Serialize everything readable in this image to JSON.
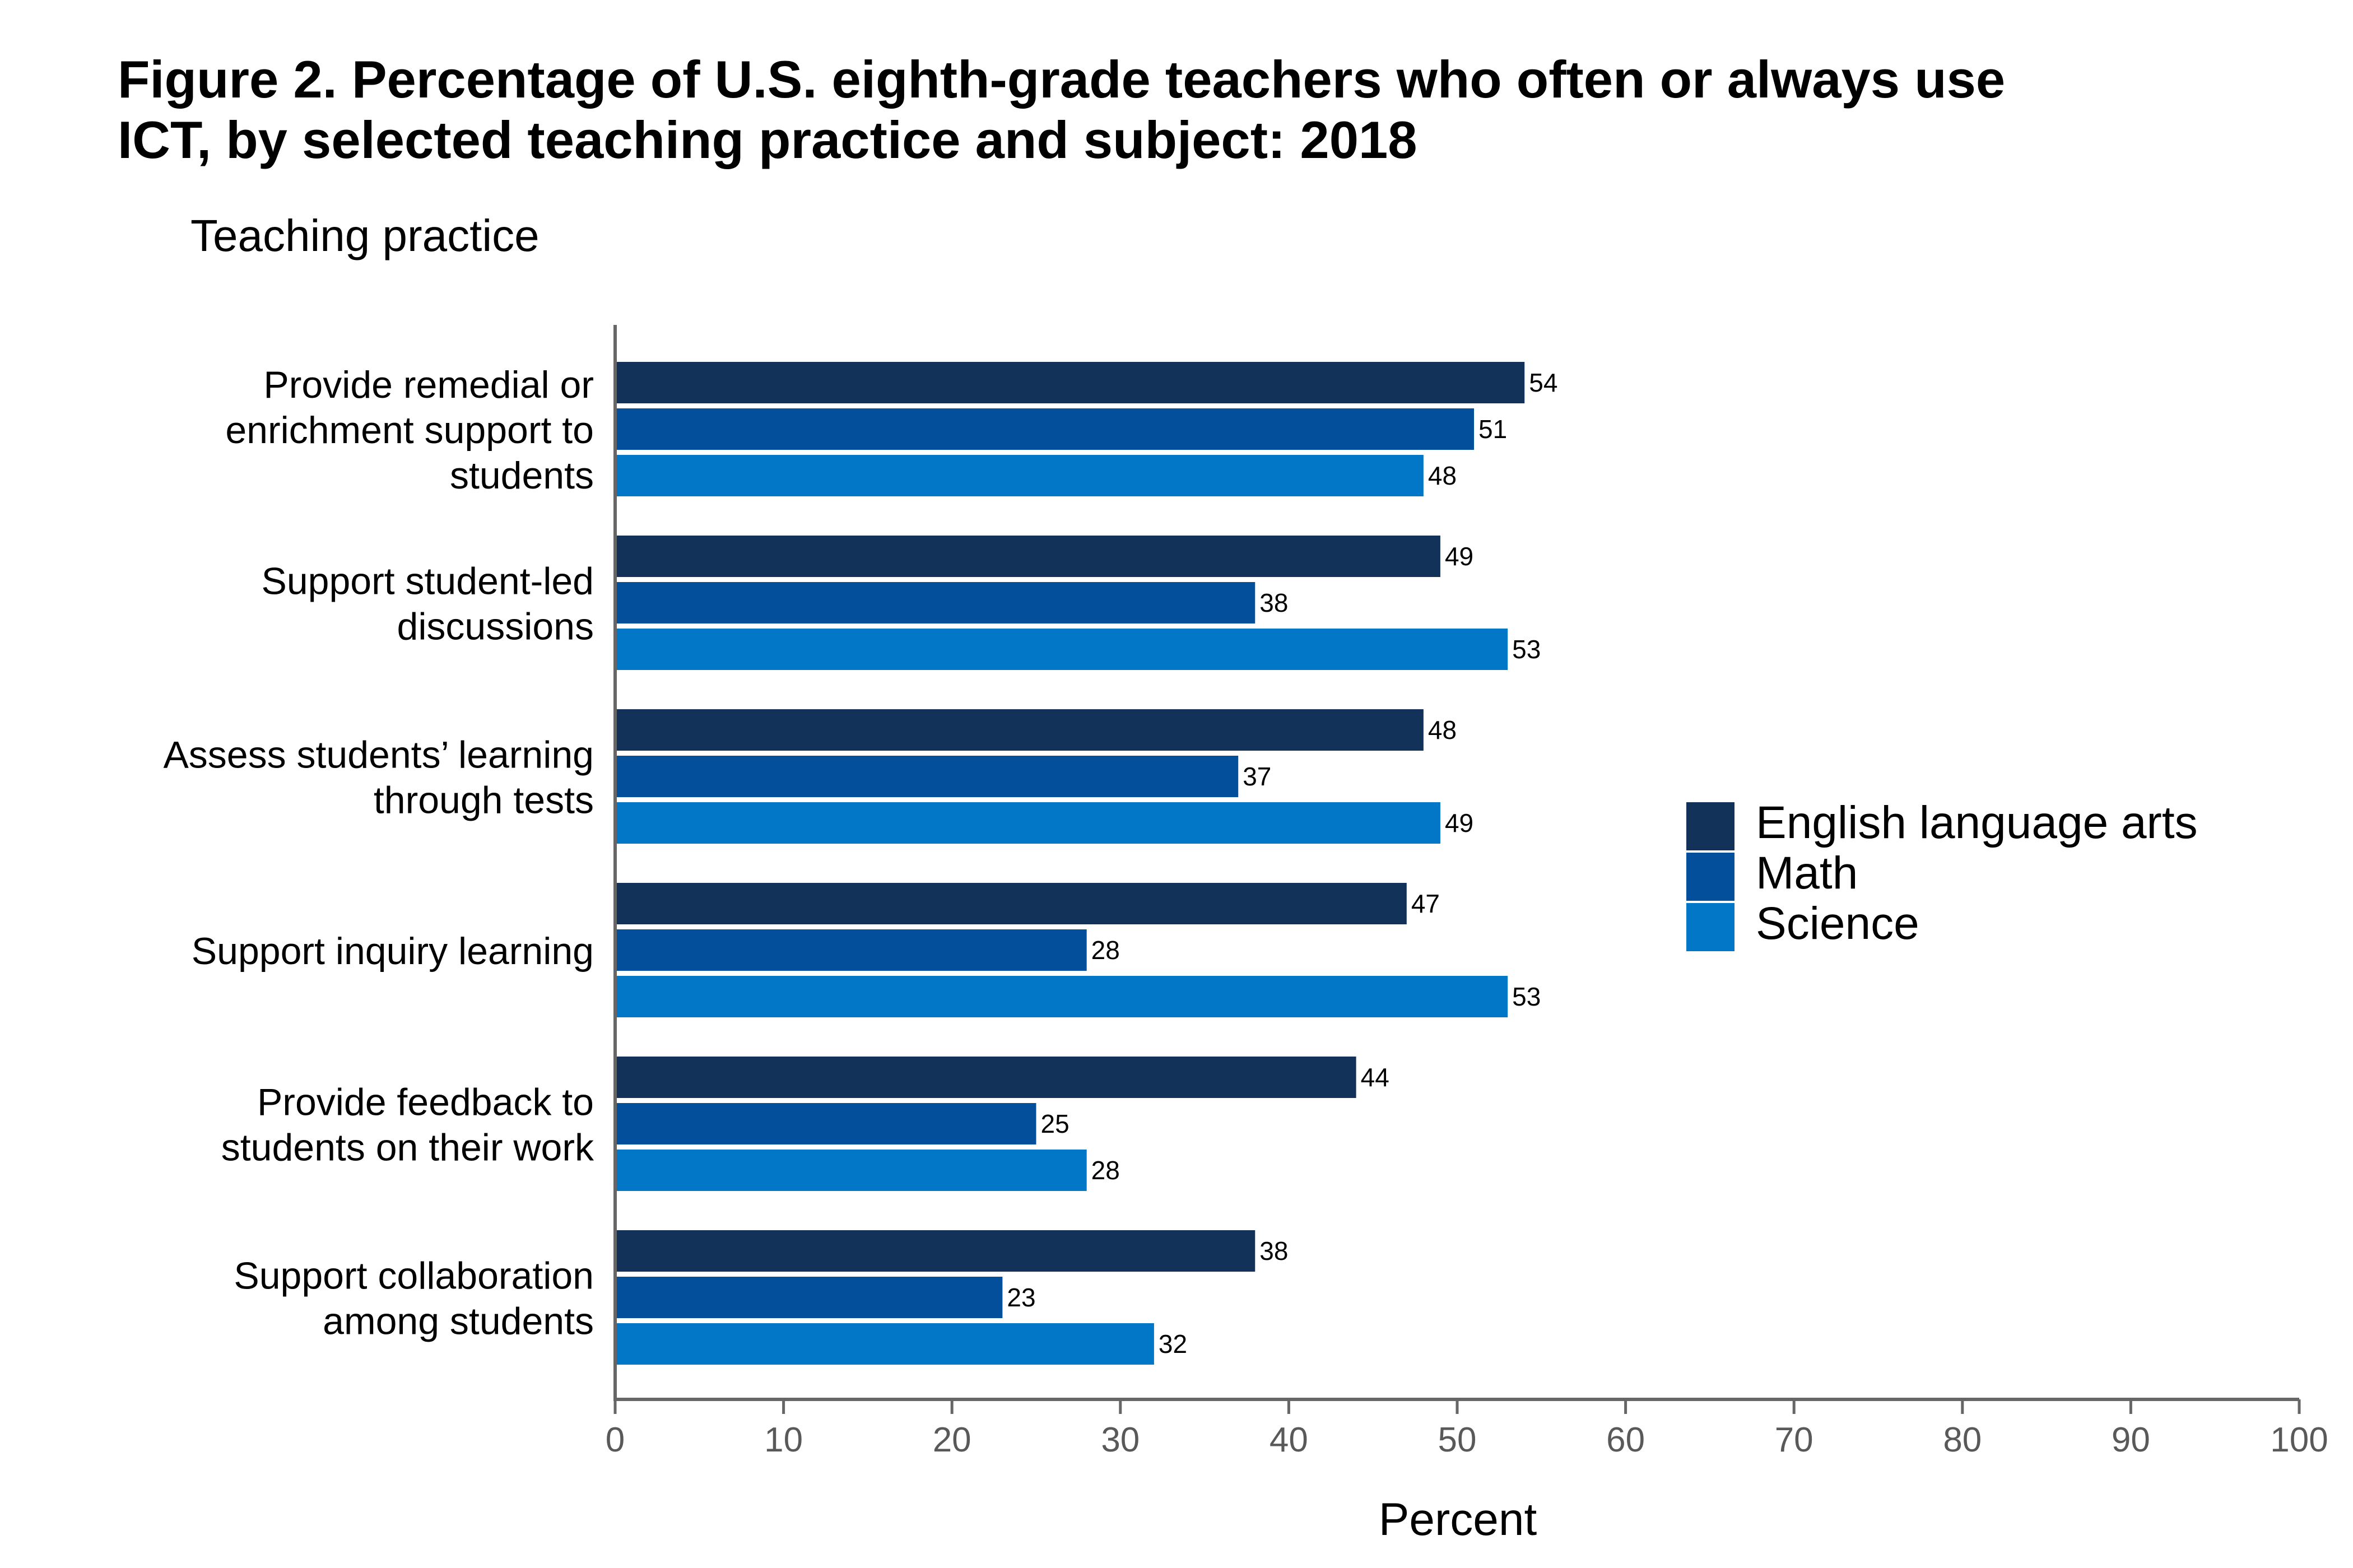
{
  "chart_data": {
    "type": "bar",
    "orientation": "horizontal",
    "title_lines": [
      "Figure 2. Percentage of U.S. eighth-grade teachers who often or always use",
      "ICT, by selected teaching practice and subject: 2018"
    ],
    "ylabel": "Teaching practice",
    "xlabel": "Percent",
    "xlim": [
      0,
      100
    ],
    "x_ticks": [
      0,
      10,
      20,
      30,
      40,
      50,
      60,
      70,
      80,
      90,
      100
    ],
    "x_tick_labels": [
      "0",
      "10",
      "20",
      "30",
      "40",
      "50",
      "60",
      "70",
      "80",
      "90",
      "100"
    ],
    "grid": false,
    "legend_position": "right",
    "categories": [
      [
        "Provide remedial or",
        "enrichment support to",
        "students"
      ],
      [
        "Support student-led",
        "discussions"
      ],
      [
        "Assess students’ learning",
        "through tests"
      ],
      [
        "Support inquiry learning"
      ],
      [
        "Provide feedback to",
        "students on their work"
      ],
      [
        "Support collaboration",
        "among students"
      ]
    ],
    "series": [
      {
        "name": "English language arts",
        "color": "#12325a",
        "values": [
          54,
          49,
          48,
          47,
          44,
          38
        ],
        "labels": [
          "54",
          "49",
          "48",
          "47",
          "44",
          "38"
        ]
      },
      {
        "name": "Math",
        "color": "#034f9c",
        "values": [
          51,
          38,
          37,
          28,
          25,
          23
        ],
        "labels": [
          "51",
          "38",
          "37",
          "28",
          "25",
          "23"
        ]
      },
      {
        "name": "Science",
        "color": "#0277c8",
        "values": [
          48,
          53,
          49,
          53,
          28,
          32
        ],
        "labels": [
          "48",
          "53",
          "49",
          "53",
          "28",
          "32"
        ]
      }
    ]
  }
}
